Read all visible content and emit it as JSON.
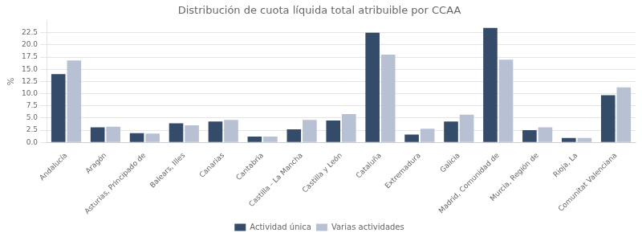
{
  "chart_data": {
    "type": "bar",
    "title": "Distribución de cuota líquida total atribuible por CCAA",
    "ylabel": "%",
    "categories": [
      "Andalucía",
      "Aragón",
      "Asturias, Principado de",
      "Balears, Illes",
      "Canarias",
      "Cantabria",
      "Castilla - La Mancha",
      "Castilla y León",
      "Cataluña",
      "Extremadura",
      "Galicia",
      "Madrid, Comunidad de",
      "Murcia, Región de",
      "Rioja, La",
      "Comunitat Valenciana"
    ],
    "series": [
      {
        "name": "Actividad única",
        "color": "#354b6a",
        "values": [
          14.0,
          3.1,
          1.9,
          3.9,
          4.3,
          1.2,
          2.7,
          4.5,
          22.5,
          1.6,
          4.3,
          23.5,
          2.5,
          0.9,
          9.7
        ]
      },
      {
        "name": "Varias actividades",
        "color": "#b8c0d4",
        "values": [
          16.8,
          3.2,
          1.8,
          3.5,
          4.6,
          1.2,
          4.6,
          5.8,
          18.0,
          2.8,
          5.7,
          17.0,
          3.1,
          0.9,
          11.3
        ]
      }
    ],
    "ylim": [
      0,
      25
    ],
    "yticks": [
      {
        "value": 0.0,
        "label": "0.0"
      },
      2.5,
      {
        "value": 5.0,
        "label": "5.0"
      },
      7.5,
      {
        "value": 10.0,
        "label": "10.0"
      },
      12.5,
      {
        "value": 15.0,
        "label": "15.0"
      },
      17.5,
      {
        "value": 20.0,
        "label": "20.0"
      },
      22.5
    ],
    "grid": true,
    "legend": "bottom"
  }
}
